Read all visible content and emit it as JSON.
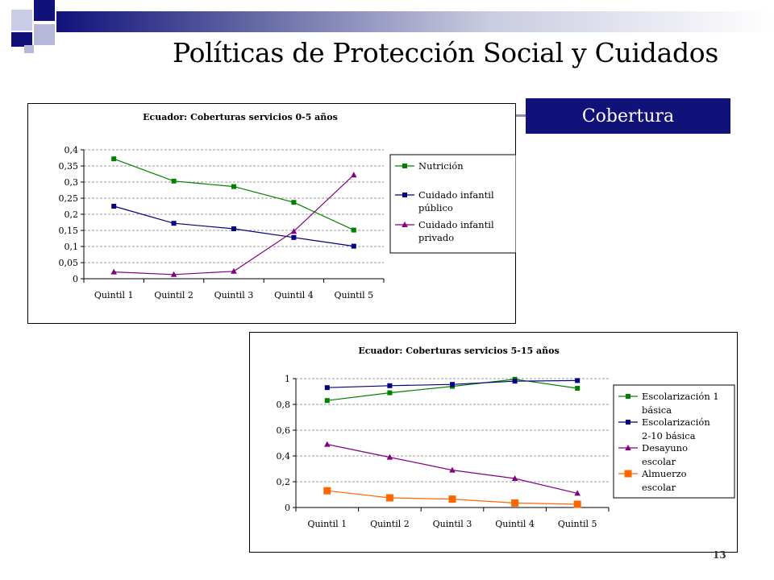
{
  "slide": {
    "title": "Políticas de Protección Social y Cuidados",
    "section_tab": "Cobertura",
    "page_number": "13",
    "accent_color": "#10127a"
  },
  "chart_data": [
    {
      "type": "line",
      "title": "Ecuador: Coberturas servicios 0-5 años",
      "categories": [
        "Quintil 1",
        "Quintil 2",
        "Quintil 3",
        "Quintil 4",
        "Quintil 5"
      ],
      "ylim": [
        0,
        0.4
      ],
      "yticks": [
        "0",
        "0,05",
        "0,1",
        "0,15",
        "0,2",
        "0,25",
        "0,3",
        "0,35",
        "0,4"
      ],
      "grid": true,
      "legend_position": "right",
      "series": [
        {
          "name": "Nutrición",
          "legend_lines": [
            "Nutrición"
          ],
          "color": "#008000",
          "marker": "square",
          "values": [
            0.372,
            0.303,
            0.286,
            0.237,
            0.151
          ]
        },
        {
          "name": "Cuidado infantil público",
          "legend_lines": [
            "Cuidado infantil",
            "público"
          ],
          "color": "#000080",
          "marker": "square",
          "values": [
            0.225,
            0.172,
            0.155,
            0.128,
            0.101
          ]
        },
        {
          "name": "Cuidado infantil privado",
          "legend_lines": [
            "Cuidado infantil",
            "privado"
          ],
          "color": "#800080",
          "marker": "triangle",
          "values": [
            0.021,
            0.013,
            0.023,
            0.147,
            0.322
          ]
        }
      ]
    },
    {
      "type": "line",
      "title": "Ecuador: Coberturas servicios 5-15 años",
      "categories": [
        "Quintil 1",
        "Quintil 2",
        "Quintil 3",
        "Quintil 4",
        "Quintil 5"
      ],
      "ylim": [
        0,
        1
      ],
      "yticks": [
        "0",
        "0,2",
        "0,4",
        "0,6",
        "0,8",
        "1"
      ],
      "grid": true,
      "legend_position": "right",
      "series": [
        {
          "name": "Escolarización 1 básica",
          "legend_lines": [
            "Escolarización 1",
            "básica"
          ],
          "color": "#008000",
          "marker": "square",
          "values": [
            0.83,
            0.89,
            0.94,
            0.995,
            0.925
          ]
        },
        {
          "name": "Escolarización 2-10 básica",
          "legend_lines": [
            "Escolarización",
            "2-10 básica"
          ],
          "color": "#000080",
          "marker": "square",
          "values": [
            0.93,
            0.945,
            0.955,
            0.98,
            0.985
          ]
        },
        {
          "name": "Desayuno escolar",
          "legend_lines": [
            "Desayuno",
            "escolar"
          ],
          "color": "#800080",
          "marker": "triangle",
          "values": [
            0.49,
            0.39,
            0.29,
            0.225,
            0.11
          ]
        },
        {
          "name": "Almuerzo escolar",
          "legend_lines": [
            "Almuerzo",
            "escolar"
          ],
          "color": "#ff6600",
          "marker": "bigsquare",
          "values": [
            0.13,
            0.075,
            0.065,
            0.035,
            0.025
          ]
        }
      ]
    }
  ]
}
